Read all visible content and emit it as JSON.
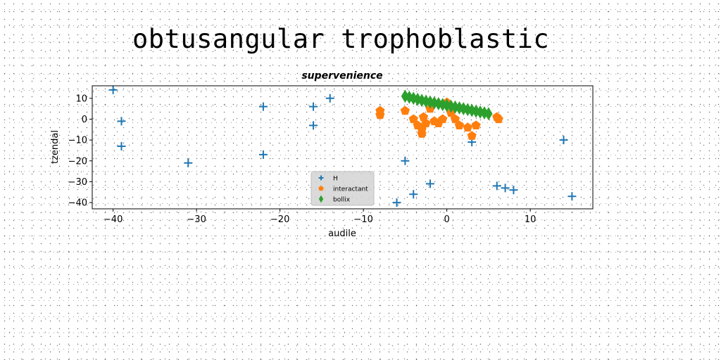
{
  "suptitle": "obtusangular trophoblastic",
  "chart_data": {
    "type": "scatter",
    "title": "supervenience",
    "xlabel": "audile",
    "ylabel": "tzendal",
    "xlim": [
      -42.5,
      17.5
    ],
    "ylim": [
      -43,
      16
    ],
    "xticks": [
      -40,
      -30,
      -20,
      -10,
      0,
      10
    ],
    "xtick_labels": [
      "−40",
      "−30",
      "−20",
      "−10",
      "0",
      "10"
    ],
    "yticks": [
      10,
      0,
      -10,
      -20,
      -30,
      -40
    ],
    "ytick_labels": [
      "10",
      "0",
      "−10",
      "−20",
      "−30",
      "−40"
    ],
    "grid": false,
    "legend_position": "bottom-center",
    "series": [
      {
        "name": "H",
        "marker": "plus",
        "color": "#1f77b4",
        "x": [
          -40,
          -39,
          -39,
          -31,
          -22,
          -22,
          -16,
          -16,
          -14,
          -6,
          -5,
          -4,
          -2,
          3,
          6,
          7,
          8,
          14,
          15
        ],
        "y": [
          14,
          -1,
          -13,
          -21,
          6,
          -17,
          6,
          -3,
          10,
          -40,
          -20,
          -36,
          -31,
          -11,
          -32,
          -33,
          -34,
          -10,
          -37
        ]
      },
      {
        "name": "interactant",
        "marker": "pentagon",
        "color": "#ff7f0e",
        "x": [
          -8,
          -8,
          -5,
          -4,
          -3.5,
          -3,
          -3,
          -2.8,
          -2.5,
          -2,
          -1.5,
          -1,
          -0.5,
          0,
          0.5,
          1,
          1.5,
          2.5,
          3,
          3.5,
          6,
          6.2
        ],
        "y": [
          4,
          2,
          4,
          0,
          -3,
          -5,
          -7,
          1,
          -2,
          5,
          -1,
          -2,
          0,
          8,
          3,
          0,
          -3,
          -4,
          -8,
          -3,
          1,
          0
        ]
      },
      {
        "name": "bollix",
        "marker": "diamond",
        "color": "#2ca02c",
        "x": [
          -5,
          -4.5,
          -4,
          -3.5,
          -3,
          -2.5,
          -2,
          -1.5,
          -1,
          -0.5,
          0,
          0.5,
          1,
          1.5,
          2,
          2.5,
          3,
          3.5,
          4,
          4.5,
          5
        ],
        "y": [
          11,
          10.5,
          10,
          9.5,
          9,
          8.6,
          8.2,
          7.8,
          7.4,
          7,
          6.6,
          6.2,
          5.8,
          5.4,
          5,
          4.6,
          4.2,
          3.8,
          3.4,
          3,
          2.6
        ]
      }
    ]
  }
}
